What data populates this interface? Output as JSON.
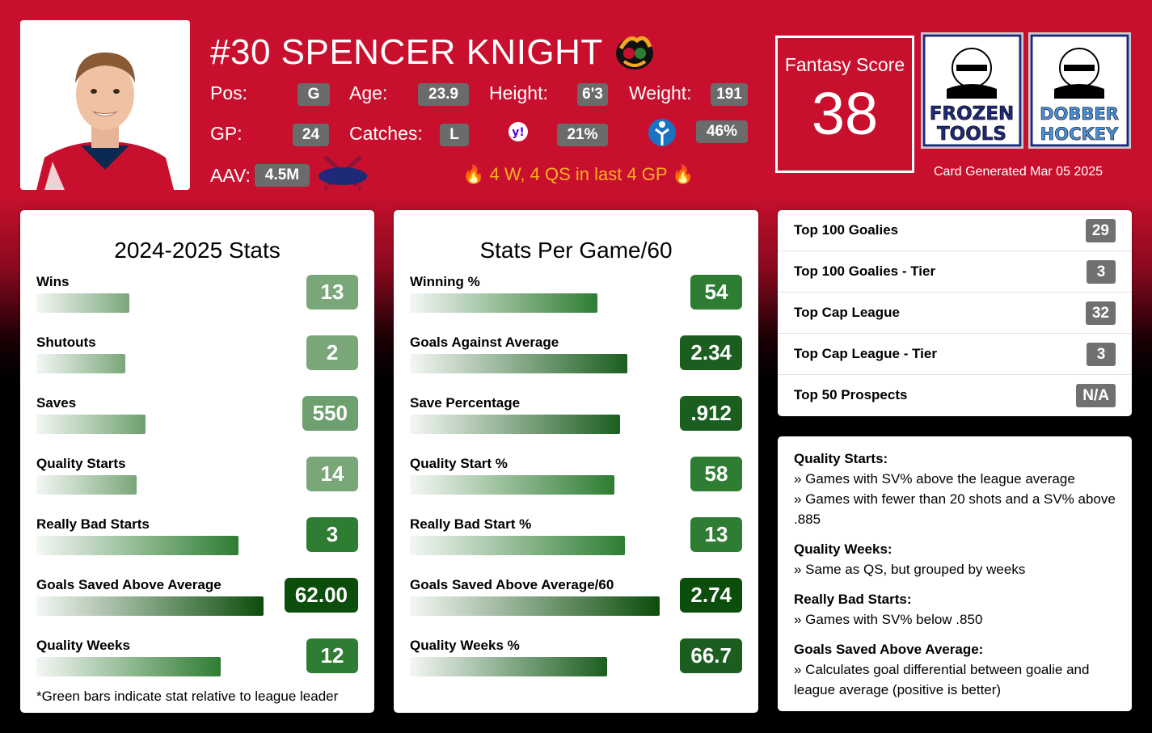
{
  "player": {
    "name": "#30 SPENCER KNIGHT",
    "pos_label": "Pos:",
    "pos": "G",
    "age_label": "Age:",
    "age": "23.9",
    "height_label": "Height:",
    "height": "6'3",
    "weight_label": "Weight:",
    "weight": "191",
    "gp_label": "GP:",
    "gp": "24",
    "catches_label": "Catches:",
    "catches": "L",
    "yahoo_pct": "21%",
    "other_pct": "46%",
    "aav_label": "AAV:",
    "aav": "4.5M",
    "streak_text": "🔥 4 W, 4 QS in last 4 GP 🔥"
  },
  "fantasy": {
    "label": "Fantasy Score",
    "value": "38"
  },
  "brands": {
    "frozen": [
      "FROZEN",
      "TOOLS"
    ],
    "dobber": [
      "DOBBER",
      "HOCKEY"
    ]
  },
  "generated": "Card Generated Mar 05 2025",
  "season_stats": {
    "title": "2024-2025 Stats",
    "rows": [
      {
        "label": "Wins",
        "value": "13",
        "pct": 0.41,
        "color": "#7aa77a"
      },
      {
        "label": "Shutouts",
        "value": "2",
        "pct": 0.39,
        "color": "#7aa77a"
      },
      {
        "label": "Saves",
        "value": "550",
        "pct": 0.48,
        "color": "#6e9f6e"
      },
      {
        "label": "Quality Starts",
        "value": "14",
        "pct": 0.44,
        "color": "#7aa77a"
      },
      {
        "label": "Really Bad Starts",
        "value": "3",
        "pct": 0.89,
        "color": "#2e7d32"
      },
      {
        "label": "Goals Saved Above Average",
        "value": "62.00",
        "pct": 1.0,
        "color": "#0b4d0b"
      },
      {
        "label": "Quality Weeks",
        "value": "12",
        "pct": 0.81,
        "color": "#2e7d32"
      }
    ],
    "footnote": "*Green bars indicate stat relative to league leader"
  },
  "per_game": {
    "title": "Stats Per Game/60",
    "rows": [
      {
        "label": "Winning %",
        "value": "54",
        "pct": 0.75,
        "color": "#2e7d32"
      },
      {
        "label": "Goals Against Average",
        "value": "2.34",
        "pct": 0.87,
        "color": "#1b5e20"
      },
      {
        "label": "Save Percentage",
        "value": ".912",
        "pct": 0.84,
        "color": "#1b5e20"
      },
      {
        "label": "Quality Start %",
        "value": "58",
        "pct": 0.82,
        "color": "#2e7d32"
      },
      {
        "label": "Really Bad Start %",
        "value": "13",
        "pct": 0.86,
        "color": "#2e7d32"
      },
      {
        "label": "Goals Saved Above Average/60",
        "value": "2.74",
        "pct": 1.0,
        "color": "#0b4d0b"
      },
      {
        "label": "Quality Weeks %",
        "value": "66.7",
        "pct": 0.79,
        "color": "#1b5e20"
      }
    ]
  },
  "rankings": [
    {
      "label": "Top 100 Goalies",
      "value": "29"
    },
    {
      "label": "Top 100 Goalies - Tier",
      "value": "3"
    },
    {
      "label": "Top Cap League",
      "value": "32"
    },
    {
      "label": "Top Cap League - Tier",
      "value": "3"
    },
    {
      "label": "Top 50 Prospects",
      "value": "N/A"
    }
  ],
  "glossary": [
    {
      "head": "Quality Starts:",
      "lines": [
        "» Games with SV% above the league average",
        "» Games with fewer than 20 shots and a SV% above .885"
      ]
    },
    {
      "head": "Quality Weeks:",
      "lines": [
        "» Same as QS, but grouped by weeks"
      ]
    },
    {
      "head": "Really Bad Starts:",
      "lines": [
        "» Games with SV% below .850"
      ]
    },
    {
      "head": "Goals Saved Above Average:",
      "lines": [
        "» Calculates goal differential between goalie and league average (positive is better)"
      ]
    }
  ]
}
